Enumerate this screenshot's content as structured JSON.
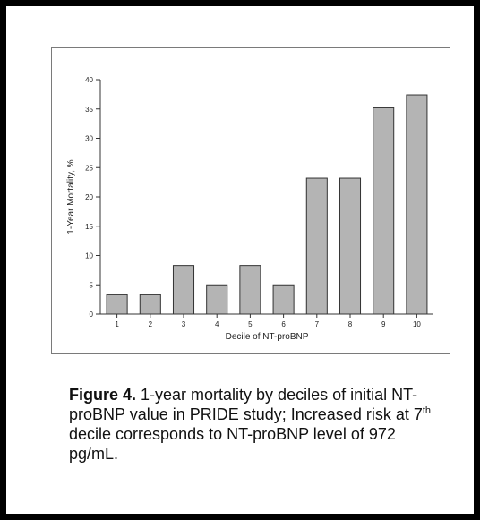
{
  "chart_data": {
    "type": "bar",
    "categories": [
      "1",
      "2",
      "3",
      "4",
      "5",
      "6",
      "7",
      "8",
      "9",
      "10"
    ],
    "values": [
      3.3,
      3.3,
      8.3,
      5.0,
      8.3,
      5.0,
      23.2,
      23.2,
      35.2,
      37.4
    ],
    "xlabel": "Decile of NT-proBNP",
    "ylabel": "1-Year Mortality, %",
    "ylim": [
      0,
      40
    ],
    "yticks": [
      "0",
      "5",
      "10",
      "15",
      "20",
      "25",
      "30",
      "35",
      "40"
    ],
    "grid": false,
    "legend": "none",
    "bar_color": "#b4b4b4",
    "bar_edge_color": "#333333"
  },
  "caption": {
    "label": "Figure 4.",
    "text_part1": " 1-year mortality by deciles of initial NT-proBNP value in PRIDE study; Increased risk at 7",
    "superscript": "th",
    "text_part2": " decile corresponds to NT-proBNP level of 972 pg/mL."
  }
}
